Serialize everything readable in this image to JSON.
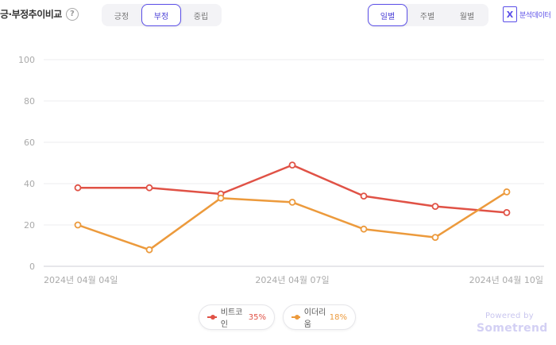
{
  "header": {
    "title": "긍·부정추이비교",
    "help_glyph": "?",
    "sentiment_tabs": [
      "긍정",
      "부정",
      "중립"
    ],
    "sentiment_active": 1,
    "period_tabs": [
      "일별",
      "주별",
      "월별"
    ],
    "period_active": 0,
    "excel_label": "분석데이터"
  },
  "chart_data": {
    "type": "line",
    "x": [
      "2024-04-04",
      "2024-04-05",
      "2024-04-06",
      "2024-04-07",
      "2024-04-08",
      "2024-04-09",
      "2024-04-10"
    ],
    "x_tick_labels": [
      "2024년 04월 04일",
      "2024년 04월 07일",
      "2024년 04월 10일"
    ],
    "x_tick_index": [
      0,
      3,
      6
    ],
    "y_ticks": [
      0,
      20,
      40,
      60,
      80,
      100
    ],
    "ylim": [
      0,
      100
    ],
    "grid": true,
    "legend_position": "bottom",
    "series": [
      {
        "name": "비트코인",
        "pct_label": "35%",
        "color": "#e05246",
        "values": [
          38,
          38,
          35,
          49,
          34,
          29,
          26
        ]
      },
      {
        "name": "이더리움",
        "pct_label": "18%",
        "color": "#ec9a3c",
        "values": [
          20,
          8,
          33,
          31,
          18,
          14,
          36
        ]
      }
    ]
  },
  "footer": {
    "powered_by": "Powered by",
    "brand": "Sometrend"
  }
}
